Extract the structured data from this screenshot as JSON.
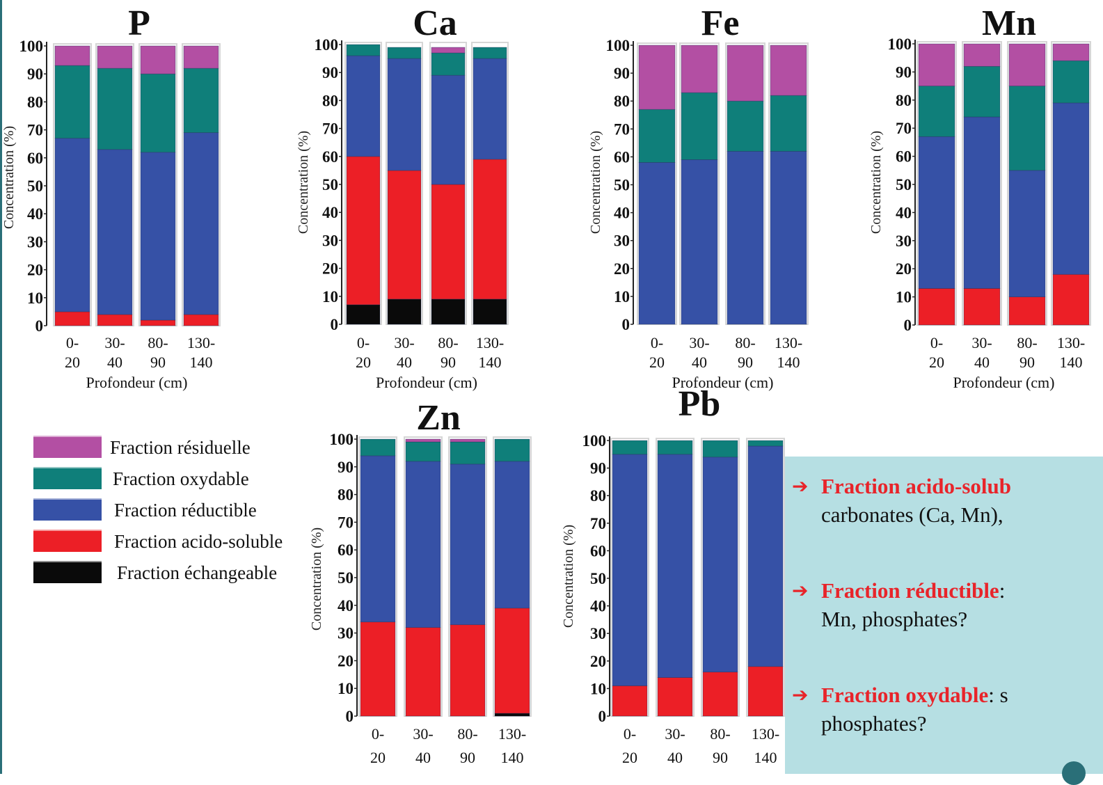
{
  "colors": {
    "echangeable": "#0a0a0a",
    "acido_soluble": "#ec1f26",
    "reductible": "#3651a6",
    "oxydable": "#0f7f7a",
    "residuelle": "#b34fa3"
  },
  "legend": [
    {
      "key": "residuelle",
      "label": "Fraction résiduelle"
    },
    {
      "key": "oxydable",
      "label": "Fraction oxydable"
    },
    {
      "key": "reductible",
      "label": "Fraction réductible"
    },
    {
      "key": "acido_soluble",
      "label": "Fraction acido-soluble"
    },
    {
      "key": "echangeable",
      "label": "Fraction échangeable"
    }
  ],
  "notes": [
    {
      "key": "Fraction acido-solub",
      "rest": "",
      "line2": "carbonates (Ca, Mn),"
    },
    {
      "key": "Fraction réductible",
      "rest": ":",
      "line2": "Mn, phosphates?"
    },
    {
      "key": "Fraction oxydable",
      "rest": ": s",
      "line2": "phosphates?"
    }
  ],
  "chart_data": [
    {
      "type": "bar",
      "stacked": true,
      "title": "P",
      "categories": [
        [
          "0-",
          "20"
        ],
        [
          "30-",
          "40"
        ],
        [
          "80-",
          "90"
        ],
        [
          "130-",
          "140"
        ]
      ],
      "xlabel": "Profondeur (cm)",
      "ylabel": "Concentration (%)",
      "ylim": [
        0,
        100
      ],
      "yticks": [
        0,
        10,
        20,
        30,
        40,
        50,
        60,
        70,
        80,
        90,
        100
      ],
      "series": [
        {
          "name": "Fraction échangeable",
          "key": "echangeable",
          "values": [
            0,
            0,
            0,
            0
          ]
        },
        {
          "name": "Fraction acido-soluble",
          "key": "acido_soluble",
          "values": [
            5,
            4,
            2,
            4
          ]
        },
        {
          "name": "Fraction réductible",
          "key": "reductible",
          "values": [
            62,
            59,
            60,
            65
          ]
        },
        {
          "name": "Fraction oxydable",
          "key": "oxydable",
          "values": [
            26,
            29,
            28,
            23
          ]
        },
        {
          "name": "Fraction résiduelle",
          "key": "residuelle",
          "values": [
            7,
            8,
            10,
            8
          ]
        }
      ]
    },
    {
      "type": "bar",
      "stacked": true,
      "title": "Ca",
      "categories": [
        [
          "0-",
          "20"
        ],
        [
          "30-",
          "40"
        ],
        [
          "80-",
          "90"
        ],
        [
          "130-",
          "140"
        ]
      ],
      "xlabel": "Profondeur (cm)",
      "ylabel": "Concentration (%)",
      "ylim": [
        0,
        100
      ],
      "yticks": [
        0,
        10,
        20,
        30,
        40,
        50,
        60,
        70,
        80,
        90,
        100
      ],
      "series": [
        {
          "name": "Fraction échangeable",
          "key": "echangeable",
          "values": [
            7,
            9,
            9,
            9
          ]
        },
        {
          "name": "Fraction acido-soluble",
          "key": "acido_soluble",
          "values": [
            53,
            46,
            41,
            50
          ]
        },
        {
          "name": "Fraction réductible",
          "key": "reductible",
          "values": [
            36,
            40,
            39,
            36
          ]
        },
        {
          "name": "Fraction oxydable",
          "key": "oxydable",
          "values": [
            4,
            4,
            8,
            4
          ]
        },
        {
          "name": "Fraction résiduelle",
          "key": "residuelle",
          "values": [
            0,
            0,
            2,
            0
          ]
        }
      ]
    },
    {
      "type": "bar",
      "stacked": true,
      "title": "Fe",
      "categories": [
        [
          "0-",
          "20"
        ],
        [
          "30-",
          "40"
        ],
        [
          "80-",
          "90"
        ],
        [
          "130-",
          "140"
        ]
      ],
      "xlabel": "Profondeur (cm)",
      "ylabel": "Concentration (%)",
      "ylim": [
        0,
        100
      ],
      "yticks": [
        0,
        10,
        20,
        30,
        40,
        50,
        60,
        70,
        80,
        90,
        100
      ],
      "series": [
        {
          "name": "Fraction échangeable",
          "key": "echangeable",
          "values": [
            0,
            0,
            0,
            0
          ]
        },
        {
          "name": "Fraction acido-soluble",
          "key": "acido_soluble",
          "values": [
            0,
            0,
            0,
            0
          ]
        },
        {
          "name": "Fraction réductible",
          "key": "reductible",
          "values": [
            58,
            59,
            62,
            62
          ]
        },
        {
          "name": "Fraction oxydable",
          "key": "oxydable",
          "values": [
            19,
            24,
            18,
            20
          ]
        },
        {
          "name": "Fraction résiduelle",
          "key": "residuelle",
          "values": [
            23,
            17,
            20,
            18
          ]
        }
      ]
    },
    {
      "type": "bar",
      "stacked": true,
      "title": "Mn",
      "categories": [
        [
          "0-",
          "20"
        ],
        [
          "30-",
          "40"
        ],
        [
          "80-",
          "90"
        ],
        [
          "130-",
          "140"
        ]
      ],
      "xlabel": "Profondeur (cm)",
      "ylabel": "Concentration (%)",
      "ylim": [
        0,
        100
      ],
      "yticks": [
        0,
        10,
        20,
        30,
        40,
        50,
        60,
        70,
        80,
        90,
        100
      ],
      "series": [
        {
          "name": "Fraction échangeable",
          "key": "echangeable",
          "values": [
            0,
            0,
            0,
            0
          ]
        },
        {
          "name": "Fraction acido-soluble",
          "key": "acido_soluble",
          "values": [
            13,
            13,
            10,
            18
          ]
        },
        {
          "name": "Fraction réductible",
          "key": "reductible",
          "values": [
            54,
            61,
            45,
            61
          ]
        },
        {
          "name": "Fraction oxydable",
          "key": "oxydable",
          "values": [
            18,
            18,
            30,
            15
          ]
        },
        {
          "name": "Fraction résiduelle",
          "key": "residuelle",
          "values": [
            15,
            8,
            15,
            6
          ]
        }
      ]
    },
    {
      "type": "bar",
      "stacked": true,
      "title": "Zn",
      "categories": [
        [
          "0-",
          "20"
        ],
        [
          "30-",
          "40"
        ],
        [
          "80-",
          "90"
        ],
        [
          "130-",
          "140"
        ]
      ],
      "xlabel": "",
      "ylabel": "Concentration (%)",
      "ylim": [
        0,
        100
      ],
      "yticks": [
        0,
        10,
        20,
        30,
        40,
        50,
        60,
        70,
        80,
        90,
        100
      ],
      "series": [
        {
          "name": "Fraction échangeable",
          "key": "echangeable",
          "values": [
            0,
            0,
            0,
            1
          ]
        },
        {
          "name": "Fraction acido-soluble",
          "key": "acido_soluble",
          "values": [
            34,
            32,
            33,
            38
          ]
        },
        {
          "name": "Fraction réductible",
          "key": "reductible",
          "values": [
            60,
            60,
            58,
            53
          ]
        },
        {
          "name": "Fraction oxydable",
          "key": "oxydable",
          "values": [
            6,
            7,
            8,
            8
          ]
        },
        {
          "name": "Fraction résiduelle",
          "key": "residuelle",
          "values": [
            2,
            1,
            1,
            0
          ]
        }
      ]
    },
    {
      "type": "bar",
      "stacked": true,
      "title": "Pb",
      "categories": [
        [
          "0-",
          "20"
        ],
        [
          "30-",
          "40"
        ],
        [
          "80-",
          "90"
        ],
        [
          "130-",
          "140"
        ]
      ],
      "xlabel": "",
      "ylabel": "Concentration (%)",
      "ylim": [
        0,
        100
      ],
      "yticks": [
        0,
        10,
        20,
        30,
        40,
        50,
        60,
        70,
        80,
        90,
        100
      ],
      "series": [
        {
          "name": "Fraction échangeable",
          "key": "echangeable",
          "values": [
            0,
            0,
            0,
            0
          ]
        },
        {
          "name": "Fraction acido-soluble",
          "key": "acido_soluble",
          "values": [
            11,
            14,
            16,
            18
          ]
        },
        {
          "name": "Fraction réductible",
          "key": "reductible",
          "values": [
            84,
            81,
            78,
            80
          ]
        },
        {
          "name": "Fraction oxydable",
          "key": "oxydable",
          "values": [
            10,
            10,
            11,
            7
          ]
        },
        {
          "name": "Fraction résiduelle",
          "key": "residuelle",
          "values": [
            0,
            0,
            0,
            0
          ]
        }
      ]
    }
  ]
}
